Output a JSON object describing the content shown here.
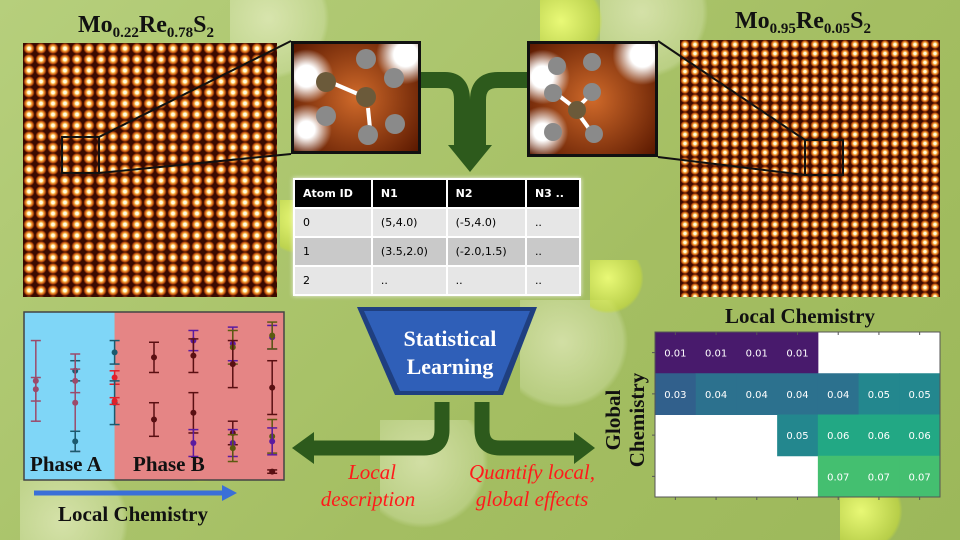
{
  "left_sample": {
    "title_parts": [
      "Mo",
      "0.22",
      "Re",
      "0.78",
      "S",
      "2"
    ]
  },
  "right_sample": {
    "title_parts": [
      "Mo",
      "0.95",
      "Re",
      "0.05",
      "S",
      "2"
    ]
  },
  "table": {
    "headers": [
      "Atom ID",
      "N1",
      "N2",
      "N3 .."
    ],
    "rows": [
      [
        "0",
        "(5,4.0)",
        "(-5,4.0)",
        ".."
      ],
      [
        "1",
        "(3.5,2.0)",
        "(-2.0,1.5)",
        ".."
      ],
      [
        "2",
        "..",
        "..",
        ".."
      ]
    ]
  },
  "funnel": {
    "line1": "Statistical",
    "line2": "Learning",
    "color": "#2f5fb8"
  },
  "outputs": {
    "left": {
      "line1": "Local",
      "line2": "description"
    },
    "right": {
      "line1": "Quantify local,",
      "line2": "global effects"
    },
    "text_color": "#ff1a1a",
    "arrow_color": "#2d5a1c"
  },
  "chart_data": [
    {
      "type": "errorbar",
      "xlabel": "Local Chemistry",
      "regions": [
        {
          "label": "Phase A",
          "color": "#7fd6f7"
        },
        {
          "label": "Phase B",
          "color": "#e58585"
        }
      ],
      "phase_boundary_x": 3.0,
      "xlim": [
        0.7,
        7.3
      ],
      "ylim": [
        0,
        10
      ],
      "points": [
        {
          "x": 1,
          "y": 5.9,
          "err": 2.4,
          "color": "#9c4a6a"
        },
        {
          "x": 1,
          "y": 5.4,
          "err": 0.7,
          "color": "#9c4a6a"
        },
        {
          "x": 2,
          "y": 6.5,
          "err": 0.6,
          "color": "#1b5a6e"
        },
        {
          "x": 2,
          "y": 5.9,
          "err": 0.7,
          "color": "#9c4a6a"
        },
        {
          "x": 2,
          "y": 4.6,
          "err": 2.9,
          "color": "#9c4a6a"
        },
        {
          "x": 2,
          "y": 2.3,
          "err": 0.6,
          "color": "#1b5a6e"
        },
        {
          "x": 3,
          "y": 7.6,
          "err": 0.7,
          "color": "#1b5a6e"
        },
        {
          "x": 3,
          "y": 6.1,
          "err": 0.4,
          "color": "#e0202a"
        },
        {
          "x": 3,
          "y": 4.6,
          "err": 1.3,
          "color": "#1b5a6e"
        },
        {
          "x": 3,
          "y": 4.7,
          "err": 0.2,
          "color": "#e0202a"
        },
        {
          "x": 4,
          "y": 7.3,
          "err": 0.9,
          "color": "#5a0f12"
        },
        {
          "x": 4,
          "y": 3.6,
          "err": 1.0,
          "color": "#5a0f12"
        },
        {
          "x": 5,
          "y": 8.3,
          "err": 0.6,
          "color": "#5a1aa0"
        },
        {
          "x": 5,
          "y": 7.4,
          "err": 1.0,
          "color": "#5a0f12"
        },
        {
          "x": 5,
          "y": 4.0,
          "err": 1.2,
          "color": "#5a0f12"
        },
        {
          "x": 5,
          "y": 2.2,
          "err": 0.8,
          "color": "#5a1aa0"
        },
        {
          "x": 6,
          "y": 8.1,
          "err": 1.0,
          "color": "#5a1aa0"
        },
        {
          "x": 6,
          "y": 7.9,
          "err": 1.0,
          "color": "#5c5a10"
        },
        {
          "x": 6,
          "y": 6.9,
          "err": 1.4,
          "color": "#5a0f12"
        },
        {
          "x": 6,
          "y": 2.8,
          "err": 0.7,
          "color": "#5a0f12"
        },
        {
          "x": 6,
          "y": 2.2,
          "err": 0.8,
          "color": "#5a1aa0"
        },
        {
          "x": 6,
          "y": 1.9,
          "err": 0.8,
          "color": "#5c5a10"
        },
        {
          "x": 7,
          "y": 8.5,
          "err": 0.7,
          "color": "#5a1aa0"
        },
        {
          "x": 7,
          "y": 8.6,
          "err": 0.8,
          "color": "#5c5a10"
        },
        {
          "x": 7,
          "y": 5.5,
          "err": 1.6,
          "color": "#5a0f12"
        },
        {
          "x": 7,
          "y": 2.6,
          "err": 1.0,
          "color": "#5c5a10"
        },
        {
          "x": 7,
          "y": 2.3,
          "err": 0.8,
          "color": "#5a1aa0"
        },
        {
          "x": 7,
          "y": 0.5,
          "err": 0.1,
          "color": "#5a0f12"
        }
      ]
    },
    {
      "type": "heatmap",
      "xlabel": "Local Chemistry",
      "ylabel": "Global Chemistry",
      "colormap": "viridis",
      "values": [
        [
          0.01,
          0.01,
          0.01,
          0.01,
          null,
          null,
          null
        ],
        [
          0.03,
          0.04,
          0.04,
          0.04,
          0.04,
          0.05,
          0.05
        ],
        [
          null,
          null,
          null,
          0.05,
          0.06,
          0.06,
          0.06
        ],
        [
          null,
          null,
          null,
          null,
          0.07,
          0.07,
          0.07
        ]
      ],
      "colors": {
        "0.01": "#481a6c",
        "0.03": "#31608c",
        "0.04": "#2c718e",
        "0.05": "#23878e",
        "0.06": "#22a884",
        "0.07": "#44bf70"
      }
    }
  ]
}
